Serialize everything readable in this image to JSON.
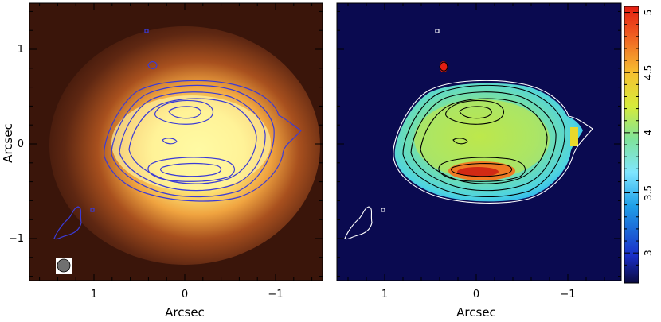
{
  "left_panel": {
    "xlabel": "Arcsec",
    "ylabel": "Arcsec",
    "x_ticks": [
      "1",
      "0",
      "−1"
    ],
    "y_ticks": [
      "1",
      "0",
      "−1"
    ],
    "contour_color": "#3b3bd6",
    "beam_color": "#707070"
  },
  "right_panel": {
    "xlabel": "Arcsec",
    "x_ticks": [
      "1",
      "0",
      "−1"
    ],
    "contour_color": "#000000",
    "outer_contour_color": "#ffffff"
  },
  "colorbar": {
    "ticks": [
      "5",
      "4.5",
      "4",
      "3.5",
      "3"
    ],
    "range": [
      2.75,
      5.05
    ],
    "colors": [
      "#0a0a40",
      "#1a2fc8",
      "#1ea0e8",
      "#7fe6ff",
      "#7fe39a",
      "#d7ec3a",
      "#f7c030",
      "#ef5a20",
      "#e41e12"
    ]
  }
}
